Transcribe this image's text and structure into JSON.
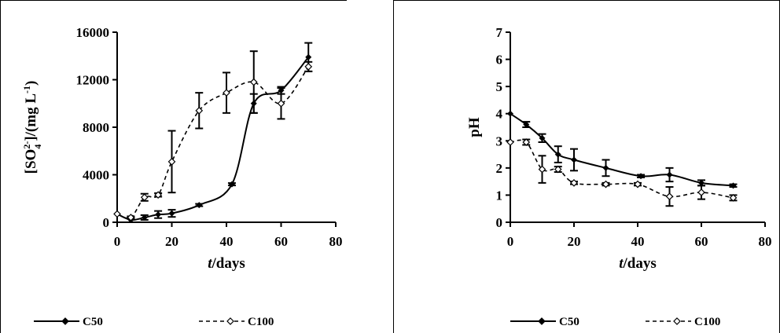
{
  "chart_data": [
    {
      "type": "line",
      "ylabel": "[SO4 2-]/(mg L-1)",
      "ylabel_parts": {
        "open": "[SO",
        "sub": "4",
        "sup": "2-",
        "mid": "]/(mg L",
        "sup2": "-1",
        "close": ")"
      },
      "xlabel_italic": "t",
      "xlabel_rest": "/days",
      "xlim": [
        0,
        80
      ],
      "ylim": [
        0,
        16000
      ],
      "xticks": [
        "0",
        "20",
        "40",
        "60",
        "80"
      ],
      "yticks": [
        "0",
        "4000",
        "8000",
        "12000",
        "16000"
      ],
      "legend_position": "bottom",
      "series": [
        {
          "name": "C50",
          "style": "solid",
          "marker": "filled",
          "x": [
            0,
            5,
            10,
            15,
            20,
            30,
            42,
            50,
            60,
            70
          ],
          "y": [
            700,
            200,
            400,
            650,
            750,
            1450,
            3200,
            10000,
            11100,
            13900
          ],
          "err": [
            0,
            200,
            200,
            300,
            300,
            100,
            100,
            800,
            300,
            1200
          ]
        },
        {
          "name": "C100",
          "style": "dashed",
          "marker": "open",
          "x": [
            0,
            5,
            10,
            15,
            20,
            30,
            40,
            50,
            60,
            70
          ],
          "y": [
            700,
            400,
            2100,
            2300,
            5100,
            9400,
            10900,
            11800,
            10000,
            13100
          ],
          "err": [
            0,
            100,
            300,
            150,
            2600,
            1500,
            1700,
            2600,
            1300,
            400
          ]
        }
      ]
    },
    {
      "type": "line",
      "ylabel": "pH",
      "xlabel_italic": "t",
      "xlabel_rest": "/days",
      "xlim": [
        0,
        80
      ],
      "ylim": [
        0,
        7
      ],
      "xticks": [
        "0",
        "20",
        "40",
        "60",
        "80"
      ],
      "yticks": [
        "0",
        "1",
        "2",
        "3",
        "4",
        "5",
        "6",
        "7"
      ],
      "legend_position": "bottom",
      "series": [
        {
          "name": "C50",
          "style": "solid",
          "marker": "filled",
          "x": [
            0,
            5,
            10,
            15,
            20,
            30,
            41,
            50,
            60,
            70
          ],
          "y": [
            4.0,
            3.6,
            3.1,
            2.5,
            2.3,
            2.0,
            1.7,
            1.75,
            1.45,
            1.35
          ],
          "err": [
            0,
            0.1,
            0.15,
            0.3,
            0.4,
            0.3,
            0.05,
            0.25,
            0.1,
            0.05
          ]
        },
        {
          "name": "C100",
          "style": "dashed",
          "marker": "open",
          "x": [
            0,
            5,
            10,
            15,
            20,
            30,
            40,
            50,
            60,
            70
          ],
          "y": [
            2.95,
            2.95,
            1.95,
            1.95,
            1.45,
            1.4,
            1.4,
            0.95,
            1.1,
            0.9
          ],
          "err": [
            0,
            0.1,
            0.5,
            0.1,
            0.05,
            0.05,
            0.05,
            0.35,
            0.25,
            0.1
          ]
        }
      ]
    }
  ]
}
